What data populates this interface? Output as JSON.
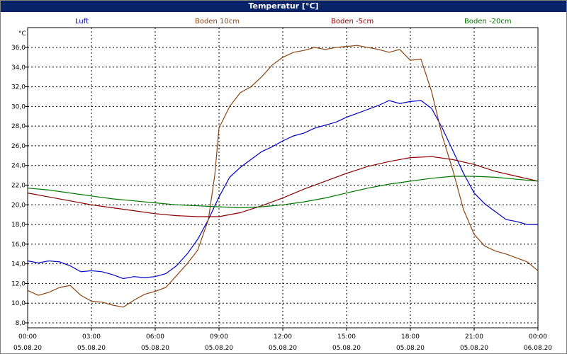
{
  "window": {
    "title": "Temperatur [°C]"
  },
  "colors": {
    "titlebar": "#0a246a",
    "grid": "#000000"
  },
  "legend": [
    {
      "name": "Luft",
      "color": "#0000cc"
    },
    {
      "name": "Boden 10cm",
      "color": "#8b4513"
    },
    {
      "name": "Boden -5cm",
      "color": "#8b0000"
    },
    {
      "name": "Boden -20cm",
      "color": "#007700"
    }
  ],
  "chart_data": {
    "type": "line",
    "ylabel": "°C",
    "ylim": [
      8,
      37
    ],
    "yticks": [
      8,
      10,
      12,
      14,
      16,
      18,
      20,
      22,
      24,
      26,
      28,
      30,
      32,
      34,
      36
    ],
    "ytick_labels": [
      "8,0",
      "10,0",
      "12,0",
      "14,0",
      "16,0",
      "18,0",
      "20,0",
      "22,0",
      "24,0",
      "26,0",
      "28,0",
      "30,0",
      "32,0",
      "34,0",
      "36,0"
    ],
    "xlim": [
      0,
      24
    ],
    "xticks": [
      {
        "time": "00:00",
        "date": "05.08.20"
      },
      {
        "time": "03:00",
        "date": "05.08.20"
      },
      {
        "time": "06:00",
        "date": "05.08.20"
      },
      {
        "time": "09:00",
        "date": "05.08.20"
      },
      {
        "time": "12:00",
        "date": "05.08.20"
      },
      {
        "time": "15:00",
        "date": "05.08.20"
      },
      {
        "time": "18:00",
        "date": "05.08.20"
      },
      {
        "time": "21:00",
        "date": "05.08.20"
      },
      {
        "time": "00:00",
        "date": "06.08.20"
      }
    ],
    "grid": true,
    "legend_position": "top",
    "series": [
      {
        "name": "Luft",
        "color": "#0000cc",
        "x": [
          0,
          0.5,
          1,
          1.5,
          2,
          2.5,
          3,
          3.5,
          4,
          4.5,
          5,
          5.5,
          6,
          6.5,
          7,
          7.5,
          8,
          8.5,
          9,
          9.5,
          10,
          10.5,
          11,
          11.5,
          12,
          12.5,
          13,
          13.5,
          14,
          14.5,
          15,
          15.5,
          16,
          16.5,
          17,
          17.5,
          18,
          18.5,
          19,
          19.5,
          20,
          20.5,
          21,
          21.5,
          22,
          22.5,
          23,
          23.5,
          24
        ],
        "y": [
          14.3,
          14.1,
          14.3,
          14.2,
          13.8,
          13.2,
          13.3,
          13.2,
          12.9,
          12.5,
          12.7,
          12.6,
          12.7,
          13.0,
          13.8,
          15.0,
          16.5,
          18.5,
          20.8,
          22.8,
          23.8,
          24.6,
          25.4,
          25.9,
          26.5,
          27.0,
          27.3,
          27.8,
          28.1,
          28.4,
          28.9,
          29.3,
          29.7,
          30.1,
          30.6,
          30.3,
          30.5,
          30.6,
          29.8,
          27.8,
          25.5,
          23.2,
          21.2,
          20.1,
          19.3,
          18.5,
          18.3,
          18.0,
          18.0
        ]
      },
      {
        "name": "Boden 10cm",
        "color": "#8b4513",
        "x": [
          0,
          0.5,
          1,
          1.5,
          2,
          2.5,
          3,
          3.5,
          4,
          4.5,
          5,
          5.5,
          6,
          6.5,
          7,
          7.5,
          8,
          8.5,
          8.8,
          9,
          9.5,
          10,
          10.5,
          11,
          11.5,
          12,
          12.5,
          13,
          13.5,
          14,
          14.5,
          15,
          15.5,
          16,
          16.5,
          17,
          17.5,
          18,
          18.5,
          19,
          19.5,
          20,
          20.5,
          21,
          21.5,
          22,
          22.5,
          23,
          23.5,
          24
        ],
        "y": [
          11.3,
          10.8,
          11.1,
          11.6,
          11.8,
          10.8,
          10.2,
          10.1,
          9.8,
          9.6,
          10.3,
          10.9,
          11.2,
          11.6,
          12.8,
          14.0,
          15.4,
          18.5,
          23.0,
          27.8,
          30.0,
          31.4,
          32.0,
          33.0,
          34.2,
          35.0,
          35.5,
          35.7,
          36.0,
          35.8,
          36.0,
          36.1,
          36.2,
          36.0,
          35.8,
          35.5,
          35.8,
          34.7,
          34.8,
          31.5,
          27.0,
          23.5,
          19.5,
          17.0,
          15.8,
          15.3,
          15.0,
          14.6,
          14.2,
          13.3
        ]
      },
      {
        "name": "Boden -5cm",
        "color": "#8b0000",
        "x": [
          0,
          1,
          2,
          3,
          4,
          5,
          6,
          7,
          8,
          9,
          10,
          11,
          12,
          13,
          14,
          15,
          16,
          17,
          18,
          19,
          20,
          21,
          22,
          23,
          24
        ],
        "y": [
          21.2,
          20.8,
          20.4,
          20.0,
          19.7,
          19.4,
          19.1,
          18.9,
          18.8,
          18.8,
          19.2,
          19.9,
          20.7,
          21.6,
          22.4,
          23.2,
          23.9,
          24.4,
          24.8,
          24.9,
          24.6,
          24.1,
          23.4,
          22.9,
          22.4
        ]
      },
      {
        "name": "Boden -20cm",
        "color": "#007700",
        "x": [
          0,
          1,
          2,
          3,
          4,
          5,
          6,
          7,
          8,
          9,
          10,
          11,
          12,
          13,
          14,
          15,
          16,
          17,
          18,
          19,
          20,
          21,
          22,
          23,
          24
        ],
        "y": [
          21.7,
          21.5,
          21.2,
          20.9,
          20.6,
          20.4,
          20.2,
          20.0,
          19.9,
          19.8,
          19.7,
          19.8,
          20.0,
          20.3,
          20.7,
          21.2,
          21.7,
          22.1,
          22.4,
          22.7,
          22.9,
          22.9,
          22.8,
          22.6,
          22.4
        ]
      }
    ]
  }
}
